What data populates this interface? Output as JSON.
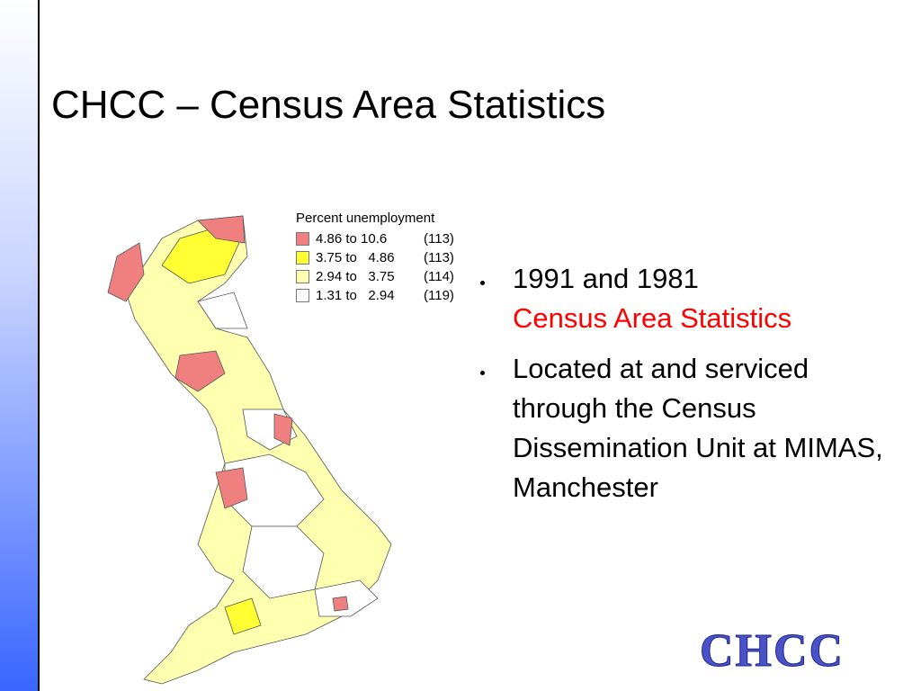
{
  "title": "CHCC – Census Area Statistics",
  "legend": {
    "title": "Percent unemployment",
    "items": [
      {
        "label": "4.86 to 10.6",
        "count": "(113)",
        "color": "#f08080"
      },
      {
        "label": "3.75 to   4.86",
        "count": "(113)",
        "color": "#ffff33"
      },
      {
        "label": "2.94 to   3.75",
        "count": "(114)",
        "color": "#ffffb0"
      },
      {
        "label": "1.31 to   2.94",
        "count": "(119)",
        "color": "#ffffff"
      }
    ]
  },
  "bullets": [
    {
      "text": "1991 and 1981",
      "highlight": "Census Area Statistics"
    },
    {
      "text": "Located at and serviced through the Census Dissemination Unit at MIMAS, Manchester"
    }
  ],
  "logo": "CHCC"
}
